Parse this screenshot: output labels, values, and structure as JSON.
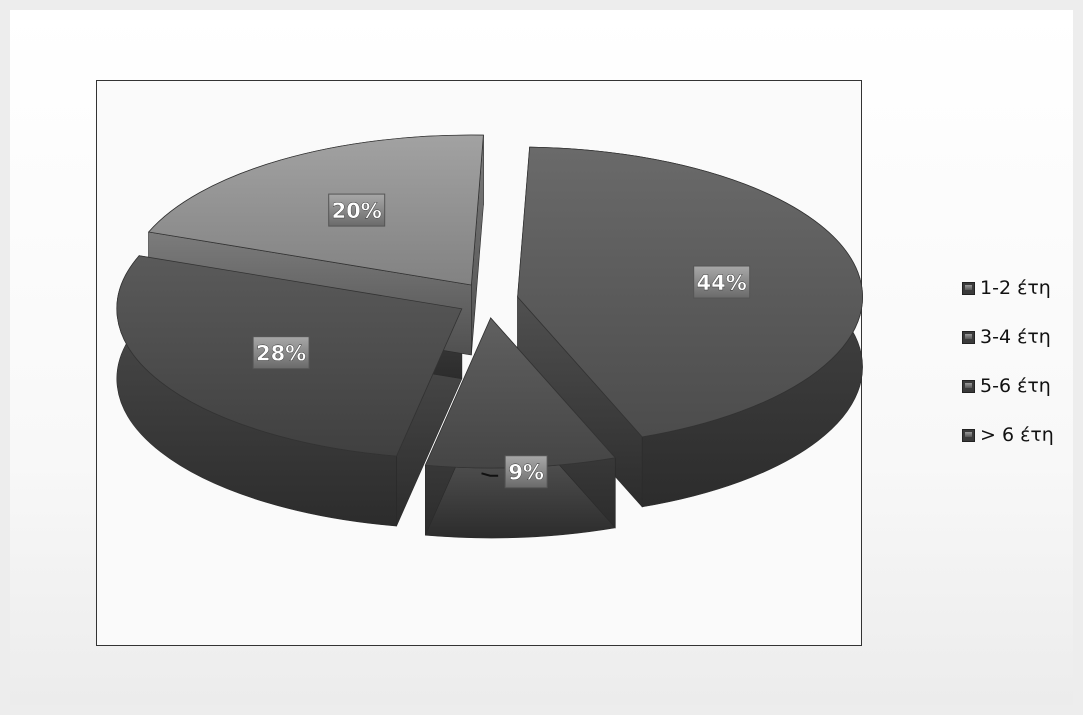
{
  "chart_data": {
    "type": "pie",
    "title": "",
    "slices": [
      {
        "label": "1-2 έτη",
        "value": 44,
        "data_label": "44%"
      },
      {
        "label": "3-4 έτη",
        "value": 9,
        "data_label": "9%"
      },
      {
        "label": "5-6 έτη",
        "value": 28,
        "data_label": "28%"
      },
      {
        "label": "> 6 έτη",
        "value": 20,
        "data_label": "20%"
      }
    ],
    "exploded": true,
    "three_d": true,
    "legend": {
      "position": "right",
      "items": [
        "1-2 έτη",
        "3-4 έτη",
        "5-6 έτη",
        "> 6 έτη"
      ]
    },
    "colors": {
      "1-2 έτη": "#565656",
      "3-4 έτη": "#505050",
      "5-6 έτη": "#4b4b4b",
      "> 6 έτη": "#8d8d8d"
    }
  }
}
